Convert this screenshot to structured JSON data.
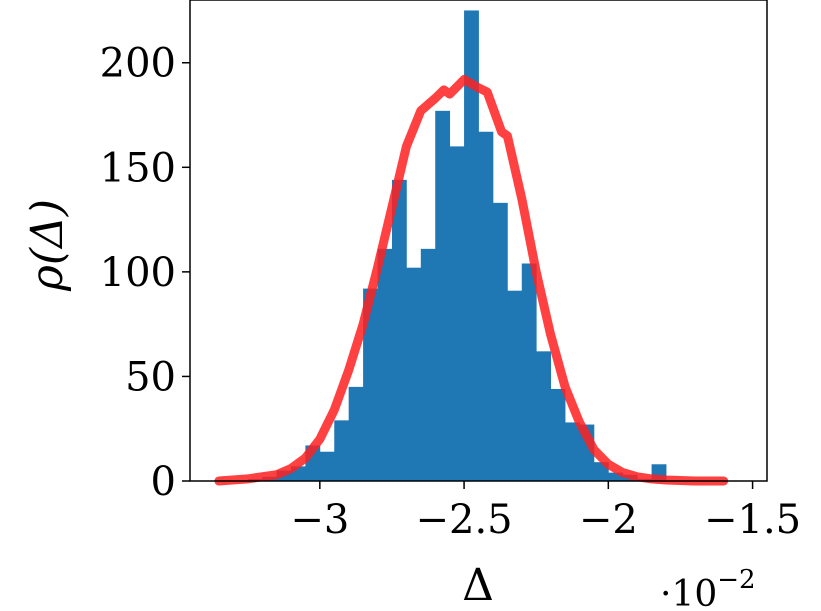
{
  "chart_data": {
    "type": "bar",
    "xlabel": "Δ",
    "ylabel": "ρ(Δ)",
    "x_multiplier_label": "·10",
    "x_multiplier_exponent": "−2",
    "xlim": [
      -3.45,
      -1.45
    ],
    "ylim": [
      0,
      230
    ],
    "xticks": [
      -3,
      -2.5,
      -2,
      -1.5
    ],
    "xtick_labels": [
      "−3",
      "−2.5",
      "−2",
      "−1.5"
    ],
    "yticks": [
      0,
      50,
      100,
      150,
      200
    ],
    "ytick_labels": [
      "0",
      "50",
      "100",
      "150",
      "200"
    ],
    "bar_color": "#1f77b4",
    "line_color": "#ff2020",
    "grid": false,
    "histogram": {
      "name": "histogram",
      "bin_width": 0.05,
      "bins": [
        {
          "x0": -3.25,
          "x1": -3.2,
          "value": 1
        },
        {
          "x0": -3.2,
          "x1": -3.15,
          "value": 2
        },
        {
          "x0": -3.15,
          "x1": -3.1,
          "value": 5
        },
        {
          "x0": -3.1,
          "x1": -3.05,
          "value": 7
        },
        {
          "x0": -3.05,
          "x1": -3.0,
          "value": 17
        },
        {
          "x0": -3.0,
          "x1": -2.95,
          "value": 14
        },
        {
          "x0": -2.95,
          "x1": -2.9,
          "value": 29
        },
        {
          "x0": -2.9,
          "x1": -2.85,
          "value": 45
        },
        {
          "x0": -2.85,
          "x1": -2.8,
          "value": 92
        },
        {
          "x0": -2.8,
          "x1": -2.75,
          "value": 111
        },
        {
          "x0": -2.75,
          "x1": -2.7,
          "value": 144
        },
        {
          "x0": -2.7,
          "x1": -2.65,
          "value": 102
        },
        {
          "x0": -2.65,
          "x1": -2.6,
          "value": 111
        },
        {
          "x0": -2.6,
          "x1": -2.55,
          "value": 177
        },
        {
          "x0": -2.55,
          "x1": -2.5,
          "value": 160
        },
        {
          "x0": -2.5,
          "x1": -2.45,
          "value": 225
        },
        {
          "x0": -2.45,
          "x1": -2.4,
          "value": 167
        },
        {
          "x0": -2.4,
          "x1": -2.35,
          "value": 133
        },
        {
          "x0": -2.35,
          "x1": -2.3,
          "value": 91
        },
        {
          "x0": -2.3,
          "x1": -2.25,
          "value": 104
        },
        {
          "x0": -2.25,
          "x1": -2.2,
          "value": 62
        },
        {
          "x0": -2.2,
          "x1": -2.15,
          "value": 44
        },
        {
          "x0": -2.15,
          "x1": -2.1,
          "value": 28
        },
        {
          "x0": -2.1,
          "x1": -2.05,
          "value": 27
        },
        {
          "x0": -2.05,
          "x1": -2.0,
          "value": 9
        },
        {
          "x0": -2.0,
          "x1": -1.95,
          "value": 4
        },
        {
          "x0": -1.95,
          "x1": -1.9,
          "value": 3
        },
        {
          "x0": -1.9,
          "x1": -1.85,
          "value": 1
        },
        {
          "x0": -1.85,
          "x1": -1.8,
          "value": 8
        }
      ]
    },
    "fit_curve": {
      "name": "fit",
      "x": [
        -3.35,
        -3.25,
        -3.15,
        -3.1,
        -3.05,
        -3.0,
        -2.95,
        -2.9,
        -2.85,
        -2.8,
        -2.75,
        -2.7,
        -2.65,
        -2.6,
        -2.57,
        -2.55,
        -2.5,
        -2.45,
        -2.42,
        -2.37,
        -2.35,
        -2.3,
        -2.25,
        -2.2,
        -2.15,
        -2.1,
        -2.05,
        -2.0,
        -1.95,
        -1.9,
        -1.85,
        -1.8,
        -1.7,
        -1.6
      ],
      "y": [
        0,
        1,
        3,
        6,
        11,
        20,
        34,
        53,
        75,
        102,
        131,
        160,
        177,
        183,
        187,
        185,
        192,
        188,
        186,
        167,
        165,
        135,
        100,
        70,
        45,
        28,
        15,
        8,
        4,
        2,
        1,
        0.5,
        0,
        0
      ]
    }
  }
}
